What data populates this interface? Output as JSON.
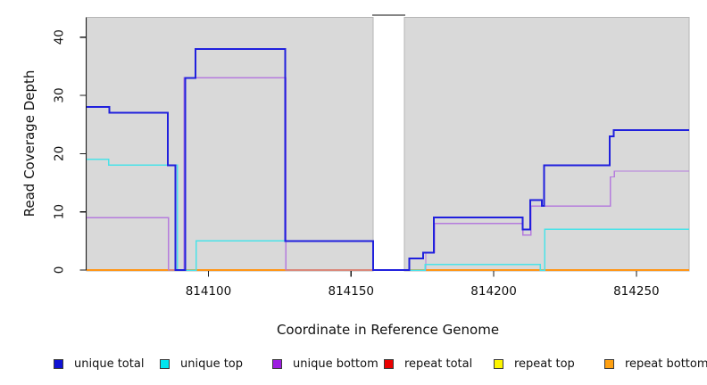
{
  "figure": {
    "kind": "read coverage step plot",
    "xlabel": "Coordinate in Reference Genome",
    "ylabel": "Read Coverage Depth"
  },
  "legend": {
    "items": [
      {
        "label": "unique total",
        "swatch_color": "#1012d4"
      },
      {
        "label": "unique top",
        "swatch_color": "#00e5ee"
      },
      {
        "label": "unique bottom",
        "swatch_color": "#9d1ee0"
      },
      {
        "label": "repeat total",
        "swatch_color": "#ea0000"
      },
      {
        "label": "repeat top",
        "swatch_color": "#fdf500"
      },
      {
        "label": "repeat bottom",
        "swatch_color": "#ffa011"
      }
    ]
  },
  "chart_data": {
    "type": "line",
    "subtype": "step-after",
    "title": "",
    "xlabel": "Coordinate in Reference Genome",
    "ylabel": "Read Coverage Depth",
    "xlim": [
      814057.3,
      814268.5
    ],
    "ylim": [
      0,
      43.4
    ],
    "x_ticks": [
      814100,
      814150,
      814200,
      814250
    ],
    "y_ticks": [
      0,
      10,
      20,
      30,
      40
    ],
    "grid": false,
    "legend_position": "bottom",
    "plot_background": "#d9d9d9",
    "plot_border_color": "#b5b5b5",
    "gap_marker_color": "#858585",
    "coverage_regions": [
      {
        "start": 814057.3,
        "end": 814157.7
      },
      {
        "start": 814168.7,
        "end": 814268.5
      }
    ],
    "gap_region": {
      "start": 814157.7,
      "end": 814168.7
    },
    "draw_order": [
      "repeat top",
      "repeat total",
      "repeat bottom",
      "unique bottom",
      "unique top",
      "unique total"
    ],
    "series": [
      {
        "name": "unique total",
        "color": "#2020dd",
        "width": 2,
        "points": [
          [
            814057.3,
            28
          ],
          [
            814065.3,
            27
          ],
          [
            814085.7,
            18
          ],
          [
            814088.4,
            0
          ],
          [
            814091.9,
            33
          ],
          [
            814095.5,
            38
          ],
          [
            814126.9,
            5
          ],
          [
            814157.7,
            0
          ],
          [
            814170.4,
            2
          ],
          [
            814175.3,
            3
          ],
          [
            814179.0,
            9
          ],
          [
            814210.2,
            7
          ],
          [
            814212.8,
            12
          ],
          [
            814216.8,
            11
          ],
          [
            814217.6,
            18
          ],
          [
            814240.7,
            23
          ],
          [
            814242.1,
            24
          ],
          [
            814268.5,
            24
          ]
        ]
      },
      {
        "name": "unique top",
        "color": "#4ae2e8",
        "width": 1.5,
        "points": [
          [
            814057.3,
            19
          ],
          [
            814065.1,
            18
          ],
          [
            814089.1,
            0
          ],
          [
            814095.7,
            5
          ],
          [
            814157.7,
            0
          ],
          [
            814175.9,
            1
          ],
          [
            814216.3,
            0
          ],
          [
            814217.8,
            7
          ],
          [
            814268.5,
            7
          ]
        ]
      },
      {
        "name": "unique bottom",
        "color": "#b57bdd",
        "width": 1.4,
        "points": [
          [
            814057.3,
            9
          ],
          [
            814086.0,
            0
          ],
          [
            814091.4,
            33
          ],
          [
            814127.2,
            0
          ],
          [
            814176.2,
            3
          ],
          [
            814179.2,
            8
          ],
          [
            814210.2,
            6
          ],
          [
            814213.1,
            11
          ],
          [
            814240.9,
            16
          ],
          [
            814242.3,
            17
          ],
          [
            814268.5,
            17
          ]
        ]
      },
      {
        "name": "repeat total",
        "color": "#e00000",
        "width": 1.3,
        "points": [
          [
            814057.3,
            0
          ],
          [
            814268.5,
            0
          ]
        ]
      },
      {
        "name": "repeat top",
        "color": "#f5ef1f",
        "width": 1.3,
        "points": [
          [
            814057.3,
            0
          ],
          [
            814268.5,
            0
          ]
        ]
      },
      {
        "name": "repeat bottom",
        "color": "#ff9517",
        "width": 1.8,
        "points": [
          [
            814057.3,
            0
          ],
          [
            814268.5,
            0
          ]
        ]
      }
    ]
  }
}
